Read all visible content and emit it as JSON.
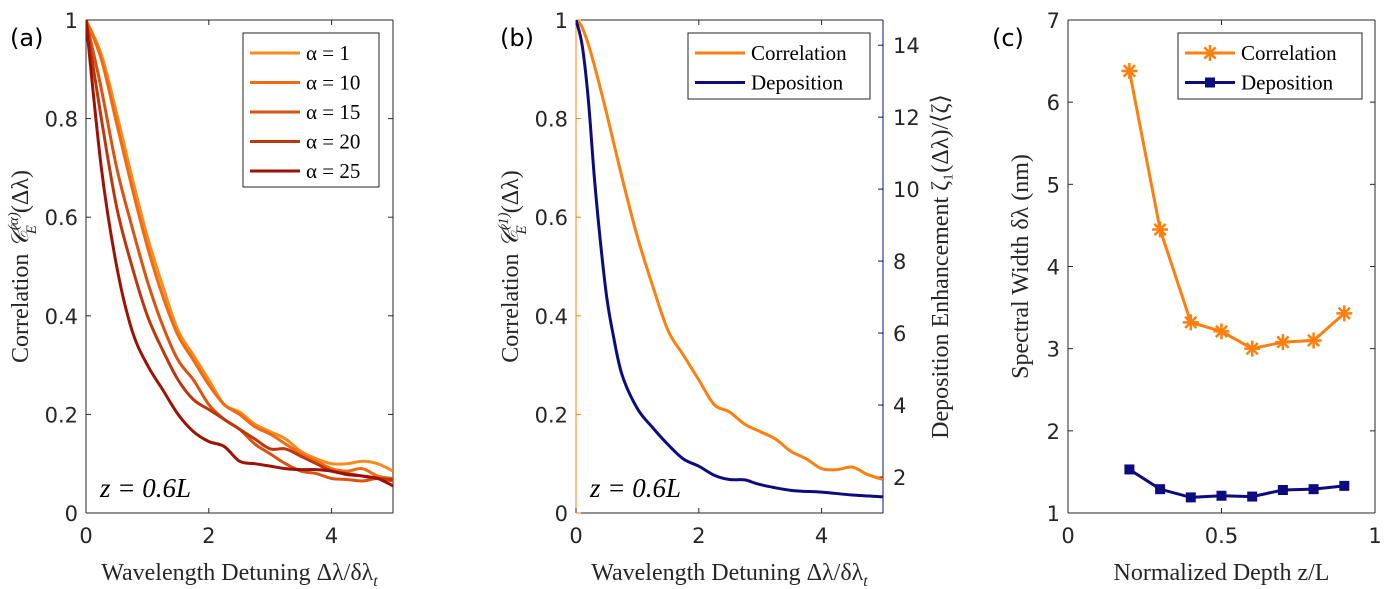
{
  "colors": {
    "alpha1": "#ff8a1c",
    "alpha10": "#f06a12",
    "alpha15": "#dc5210",
    "alpha20": "#c0360c",
    "alpha25": "#9e1206",
    "correlation": "#ff7f0e",
    "deposition": "#0c0c80",
    "axis": "#262626"
  },
  "chart_data": [
    {
      "type": "line",
      "panel_label": "(a)",
      "xlabel": {
        "text": "Wavelength Detuning Δλ/δλ",
        "sub": "t"
      },
      "ylabel": {
        "text": "Correlation ",
        "sym": "𝒞",
        "sub": "E",
        "sup": "(α)",
        "arg": "(Δλ)"
      },
      "xlim": [
        0,
        5
      ],
      "ylim": [
        0,
        1
      ],
      "xticks": [
        "0",
        "2",
        "4"
      ],
      "xtick_values": [
        0,
        2,
        4
      ],
      "yticks": [
        "0",
        "0.2",
        "0.4",
        "0.6",
        "0.8",
        "1"
      ],
      "ytick_values": [
        0,
        0.2,
        0.4,
        0.6,
        0.8,
        1
      ],
      "annotation": "z = 0.6L",
      "legend": "top-right",
      "x": [
        0,
        0.25,
        0.5,
        0.75,
        1,
        1.25,
        1.5,
        1.75,
        2,
        2.25,
        2.5,
        2.75,
        3,
        3.25,
        3.5,
        3.75,
        4,
        4.25,
        4.5,
        4.75,
        5
      ],
      "series": [
        {
          "name": "α = 1",
          "color_key": "alpha1",
          "values": [
            1,
            0.93,
            0.81,
            0.68,
            0.56,
            0.46,
            0.37,
            0.32,
            0.27,
            0.22,
            0.205,
            0.18,
            0.165,
            0.15,
            0.125,
            0.11,
            0.1,
            0.1,
            0.105,
            0.1,
            0.085
          ]
        },
        {
          "name": "α = 10",
          "color_key": "alpha10",
          "values": [
            1,
            0.92,
            0.79,
            0.66,
            0.54,
            0.44,
            0.36,
            0.31,
            0.26,
            0.22,
            0.2,
            0.175,
            0.16,
            0.14,
            0.12,
            0.105,
            0.09,
            0.085,
            0.09,
            0.075,
            0.07
          ]
        },
        {
          "name": "α = 15",
          "color_key": "alpha15",
          "values": [
            1,
            0.86,
            0.7,
            0.58,
            0.47,
            0.38,
            0.31,
            0.27,
            0.22,
            0.19,
            0.17,
            0.14,
            0.12,
            0.1,
            0.085,
            0.08,
            0.07,
            0.068,
            0.065,
            0.07,
            0.065
          ]
        },
        {
          "name": "α = 20",
          "color_key": "alpha20",
          "values": [
            1,
            0.8,
            0.62,
            0.5,
            0.4,
            0.33,
            0.27,
            0.23,
            0.21,
            0.19,
            0.17,
            0.15,
            0.13,
            0.13,
            0.115,
            0.1,
            0.085,
            0.08,
            0.075,
            0.07,
            0.068
          ]
        },
        {
          "name": "α = 25",
          "color_key": "alpha25",
          "values": [
            1,
            0.7,
            0.5,
            0.37,
            0.3,
            0.25,
            0.2,
            0.165,
            0.145,
            0.135,
            0.105,
            0.1,
            0.095,
            0.09,
            0.088,
            0.088,
            0.085,
            0.078,
            0.075,
            0.07,
            0.055
          ]
        }
      ]
    },
    {
      "type": "line",
      "panel_label": "(b)",
      "xlabel": {
        "text": "Wavelength Detuning Δλ/δλ",
        "sub": "t"
      },
      "ylabel": {
        "text": "Correlation ",
        "sym": "𝒞",
        "sub": "E",
        "sup": "(1)",
        "arg": "(Δλ)"
      },
      "y2label": "Deposition Enhancement ζ₁(Δλ)/⟨ζ⟩",
      "xlim": [
        0,
        5
      ],
      "ylim": [
        0,
        1
      ],
      "y2lim": [
        1,
        14.7
      ],
      "xticks": [
        "0",
        "2",
        "4"
      ],
      "xtick_values": [
        0,
        2,
        4
      ],
      "yticks": [
        "0",
        "0.2",
        "0.4",
        "0.6",
        "0.8",
        "1"
      ],
      "ytick_values": [
        0,
        0.2,
        0.4,
        0.6,
        0.8,
        1
      ],
      "y2ticks": [
        "2",
        "4",
        "6",
        "8",
        "10",
        "12",
        "14"
      ],
      "y2tick_values": [
        2,
        4,
        6,
        8,
        10,
        12,
        14
      ],
      "annotation": "z = 0.6L",
      "legend": "top-right",
      "series": [
        {
          "name": "Correlation",
          "axis": "left",
          "color_key": "correlation",
          "x": [
            0,
            0.1,
            0.25,
            0.5,
            0.75,
            1,
            1.25,
            1.5,
            1.75,
            2,
            2.25,
            2.5,
            2.75,
            3,
            3.25,
            3.5,
            3.75,
            4,
            4.25,
            4.5,
            4.75,
            5
          ],
          "values": [
            1,
            0.985,
            0.93,
            0.81,
            0.68,
            0.56,
            0.46,
            0.37,
            0.32,
            0.27,
            0.22,
            0.205,
            0.18,
            0.165,
            0.15,
            0.125,
            0.11,
            0.09,
            0.088,
            0.093,
            0.078,
            0.068
          ]
        },
        {
          "name": "Deposition",
          "axis": "right",
          "color_key": "deposition",
          "x": [
            0,
            0.1,
            0.2,
            0.3,
            0.4,
            0.5,
            0.6,
            0.75,
            1,
            1.25,
            1.5,
            1.75,
            2,
            2.25,
            2.5,
            2.75,
            3,
            3.5,
            4,
            4.5,
            5
          ],
          "values": [
            14.7,
            14,
            12.5,
            10.3,
            8.5,
            7,
            6,
            4.84,
            3.9,
            3.37,
            2.9,
            2.5,
            2.3,
            2.05,
            1.93,
            1.92,
            1.79,
            1.63,
            1.58,
            1.5,
            1.45
          ]
        }
      ]
    },
    {
      "type": "line",
      "panel_label": "(c)",
      "xlabel": {
        "text": "Normalized Depth z/L",
        "sub": ""
      },
      "ylabel": {
        "text": "Spectral Width δλ (nm)"
      },
      "xlim": [
        0,
        1
      ],
      "ylim": [
        1,
        7
      ],
      "xticks": [
        "0",
        "0.5",
        "1"
      ],
      "xtick_values": [
        0,
        0.5,
        1
      ],
      "yticks": [
        "1",
        "2",
        "3",
        "4",
        "5",
        "6",
        "7"
      ],
      "ytick_values": [
        1,
        2,
        3,
        4,
        5,
        6,
        7
      ],
      "legend": "top-right",
      "x": [
        0.2,
        0.3,
        0.4,
        0.5,
        0.6,
        0.7,
        0.8,
        0.9
      ],
      "series": [
        {
          "name": "Correlation",
          "marker": "asterisk",
          "color_key": "correlation",
          "values": [
            6.38,
            4.45,
            3.32,
            3.21,
            3.0,
            3.08,
            3.1,
            3.43
          ]
        },
        {
          "name": "Deposition",
          "marker": "square",
          "color_key": "deposition",
          "values": [
            1.53,
            1.29,
            1.19,
            1.21,
            1.2,
            1.28,
            1.29,
            1.33
          ]
        }
      ]
    }
  ]
}
